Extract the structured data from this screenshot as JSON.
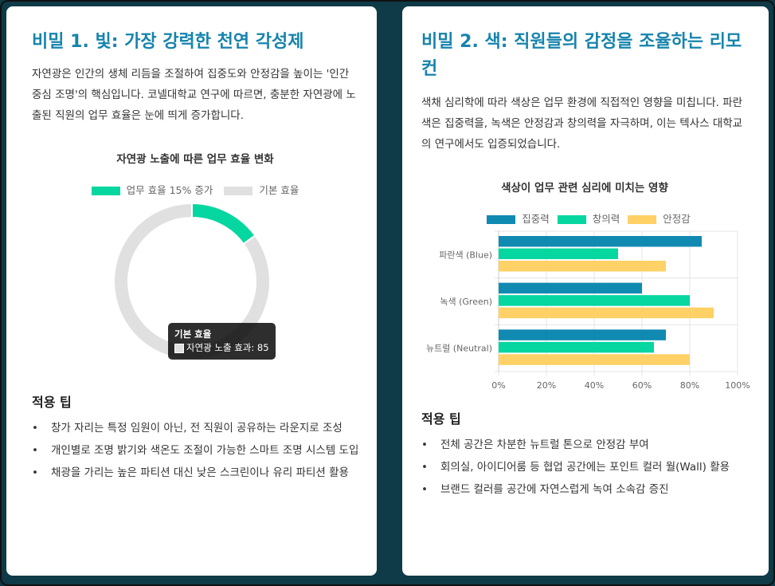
{
  "card1": {
    "title": "비밀 1. 빛: 가장 강력한 천연 각성제",
    "paragraph": "자연광은 인간의 생체 리듬을 조절하여 집중도와 안정감을 높이는 '인간 중심 조명'의 핵심입니다. 코넬대학교 연구에 따르면, 충분한 자연광에 노출된 직원의 업무 효율은 눈에 띄게 증가합니다.",
    "tips_title": "적용 팁",
    "tips": [
      "창가 자리는 특정 임원이 아닌, 전 직원이 공유하는 라운지로 조성",
      "개인별로 조명 밝기와 색온도 조절이 가능한 스마트 조명 시스템 도입",
      "채광을 가리는 높은 파티션 대신 낮은 스크린이나 유리 파티션 활용"
    ],
    "tooltip": {
      "title": "기본 효율",
      "label": "자연광 노출 효과: 85"
    }
  },
  "card2": {
    "title": "비밀 2. 색: 직원들의 감정을 조율하는 리모컨",
    "paragraph": "색채 심리학에 따라 색상은 업무 환경에 직접적인 영향을 미칩니다. 파란색은 집중력을, 녹색은 안정감과 창의력을 자극하며, 이는 텍사스 대학교의 연구에서도 입증되었습니다.",
    "tips_title": "적용 팁",
    "tips": [
      "전체 공간은 차분한 뉴트럴 톤으로 안정감 부여",
      "회의실, 아이디어룸 등 협업 공간에는 포인트 컬러 월(Wall) 활용",
      "브랜드 컬러를 공간에 자연스럽게 녹여 소속감 증진"
    ]
  },
  "chart_data": [
    {
      "type": "pie",
      "title": "자연광 노출에 따른 업무 효율 변화",
      "legend_position": "top",
      "categories": [
        "업무 효율 15% 증가",
        "기본 효율"
      ],
      "values": [
        15,
        85
      ],
      "colors": [
        "#06d6a0",
        "#e0e0e0"
      ]
    },
    {
      "type": "bar",
      "orientation": "horizontal",
      "title": "색상이 업무 관련 심리에 미치는 영향",
      "legend_position": "top",
      "categories": [
        "파란색 (Blue)",
        "녹색 (Green)",
        "뉴트럴 (Neutral)"
      ],
      "series": [
        {
          "name": "집중력",
          "values": [
            85,
            60,
            70
          ],
          "color": "#118ab2"
        },
        {
          "name": "창의력",
          "values": [
            50,
            80,
            65
          ],
          "color": "#06d6a0"
        },
        {
          "name": "안정감",
          "values": [
            70,
            90,
            80
          ],
          "color": "#ffd166"
        }
      ],
      "xlim": [
        0,
        100
      ],
      "xticks": [
        "0%",
        "20%",
        "40%",
        "60%",
        "80%",
        "100%"
      ],
      "grid": true
    }
  ]
}
